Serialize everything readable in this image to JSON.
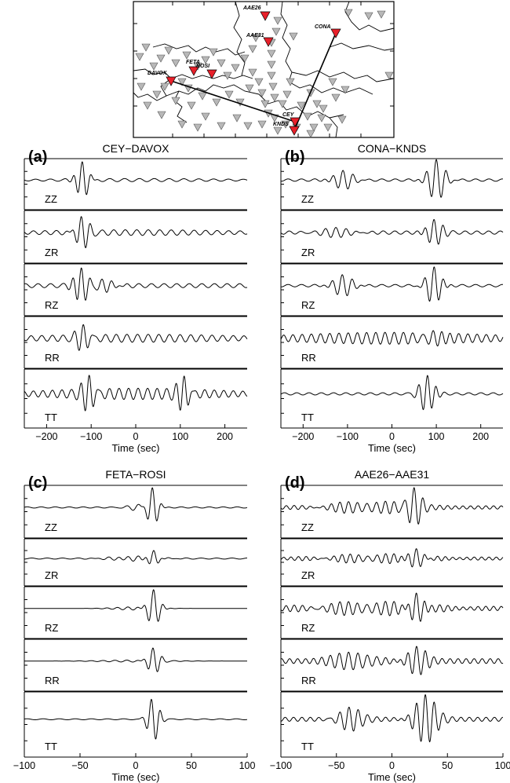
{
  "map": {
    "stations_named": [
      {
        "code": "AAE26",
        "color": "#e8202a"
      },
      {
        "code": "AAE31",
        "color": "#e8202a"
      },
      {
        "code": "CONA",
        "color": "#e8202a"
      },
      {
        "code": "FETA",
        "color": "#e8202a"
      },
      {
        "code": "ROSI",
        "color": "#e8202a"
      },
      {
        "code": "DAVOX",
        "color": "#e8202a"
      },
      {
        "code": "CEY",
        "color": "#e8202a"
      },
      {
        "code": "KNDS",
        "color": "#e8202a"
      }
    ],
    "other_station_color": "#b8b8b8",
    "paths": [
      [
        "CEY",
        "DAVOX"
      ],
      [
        "CONA",
        "KNDS"
      ]
    ]
  },
  "chart_data": [
    {
      "type": "line",
      "panel_letter": "(a)",
      "title": "CEY−DAVOX",
      "components": [
        "ZZ",
        "ZR",
        "RZ",
        "RR",
        "TT"
      ],
      "xlabel": "Time (sec)",
      "xlim": [
        -250,
        250
      ],
      "xticks": [
        -200,
        -100,
        0,
        100,
        200
      ],
      "xtick_labels": [
        "−200",
        "−100",
        "0",
        "100",
        "200"
      ],
      "description_wave_packets": [
        {
          "component": "ZZ",
          "peaks_at_sec": [
            -120
          ]
        },
        {
          "component": "ZR",
          "peaks_at_sec": [
            -120
          ]
        },
        {
          "component": "RZ",
          "peaks_at_sec": [
            -120
          ]
        },
        {
          "component": "RR",
          "peaks_at_sec": [
            -115
          ]
        },
        {
          "component": "TT",
          "peaks_at_sec": [
            -105,
            105
          ]
        }
      ]
    },
    {
      "type": "line",
      "panel_letter": "(b)",
      "title": "CONA−KNDS",
      "components": [
        "ZZ",
        "ZR",
        "RZ",
        "RR",
        "TT"
      ],
      "xlabel": "Time (sec)",
      "xlim": [
        -250,
        250
      ],
      "xticks": [
        -200,
        -100,
        0,
        100,
        200
      ],
      "xtick_labels": [
        "−200",
        "−100",
        "0",
        "100",
        "200"
      ],
      "description_wave_packets": [
        {
          "component": "ZZ",
          "peaks_at_sec": [
            -110,
            100
          ]
        },
        {
          "component": "ZR",
          "peaks_at_sec": [
            95
          ]
        },
        {
          "component": "RZ",
          "peaks_at_sec": [
            -110,
            95
          ]
        },
        {
          "component": "RR",
          "peaks_at_sec": [
            95
          ]
        },
        {
          "component": "TT",
          "peaks_at_sec": [
            80
          ]
        }
      ]
    },
    {
      "type": "line",
      "panel_letter": "(c)",
      "title": "FETA−ROSI",
      "components": [
        "ZZ",
        "ZR",
        "RZ",
        "RR",
        "TT"
      ],
      "xlabel": "Time (sec)",
      "xlim": [
        -100,
        100
      ],
      "xticks": [
        -100,
        -50,
        0,
        50,
        100
      ],
      "xtick_labels": [
        "−100",
        "−50",
        "0",
        "50",
        "100"
      ],
      "description_wave_packets": [
        {
          "component": "ZZ",
          "peaks_at_sec": [
            15
          ]
        },
        {
          "component": "ZR",
          "peaks_at_sec": [
            16
          ]
        },
        {
          "component": "RZ",
          "peaks_at_sec": [
            16
          ]
        },
        {
          "component": "RR",
          "peaks_at_sec": [
            16
          ]
        },
        {
          "component": "TT",
          "peaks_at_sec": [
            16
          ]
        }
      ]
    },
    {
      "type": "line",
      "panel_letter": "(d)",
      "title": "AAE26−AAE31",
      "components": [
        "ZZ",
        "ZR",
        "RZ",
        "RR",
        "TT"
      ],
      "xlabel": "Time (sec)",
      "xlim": [
        -100,
        100
      ],
      "xticks": [
        -100,
        -50,
        0,
        50,
        100
      ],
      "xtick_labels": [
        "−100",
        "−50",
        "0",
        "50",
        "100"
      ],
      "description_wave_packets": [
        {
          "component": "ZZ",
          "peaks_at_sec": [
            20
          ]
        },
        {
          "component": "ZR",
          "peaks_at_sec": [
            22
          ]
        },
        {
          "component": "RZ",
          "peaks_at_sec": [
            22
          ]
        },
        {
          "component": "RR",
          "peaks_at_sec": [
            -35,
            22
          ]
        },
        {
          "component": "TT",
          "peaks_at_sec": [
            -38,
            30
          ]
        }
      ]
    }
  ]
}
